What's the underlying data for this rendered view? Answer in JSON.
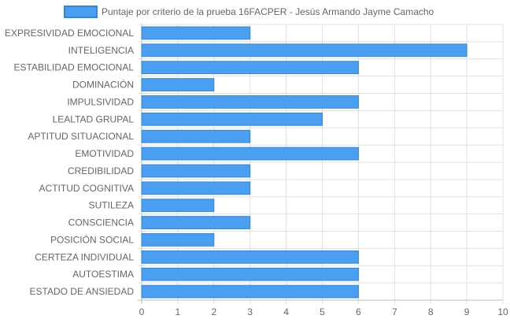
{
  "chart_data": {
    "type": "bar",
    "orientation": "horizontal",
    "categories": [
      "EXPRESIVIDAD EMOCIONAL",
      "INTELIGENCIA",
      "ESTABILIDAD EMOCIONAL",
      "DOMINACIÓN",
      "IMPULSIVIDAD",
      "LEALTAD GRUPAL",
      "APTITUD SITUACIONAL",
      "EMOTIVIDAD",
      "CREDIBILIDAD",
      "ACTITUD COGNITIVA",
      "SUTILEZA",
      "CONSCIENCIA",
      "POSICIÓN SOCIAL",
      "CERTEZA INDIVIDUAL",
      "AUTOESTIMA",
      "ESTADO DE ANSIEDAD"
    ],
    "series": [
      {
        "name": "Puntaje por criterio de la prueba 16FACPER - Jesús Armando Jayme Camacho",
        "values": [
          3,
          9,
          6,
          2,
          6,
          5,
          3,
          6,
          3,
          3,
          2,
          3,
          2,
          6,
          6,
          6
        ]
      }
    ],
    "xlim": [
      0,
      10
    ],
    "xticks": [
      "0",
      "1",
      "2",
      "3",
      "4",
      "5",
      "6",
      "7",
      "8",
      "9",
      "10"
    ],
    "grid": true,
    "legend_position": "top",
    "colors": {
      "bar_fill": "#4a9ff0",
      "bar_stroke": "#2f86e0",
      "grid": "#e0e0e0",
      "text": "#666666"
    }
  }
}
